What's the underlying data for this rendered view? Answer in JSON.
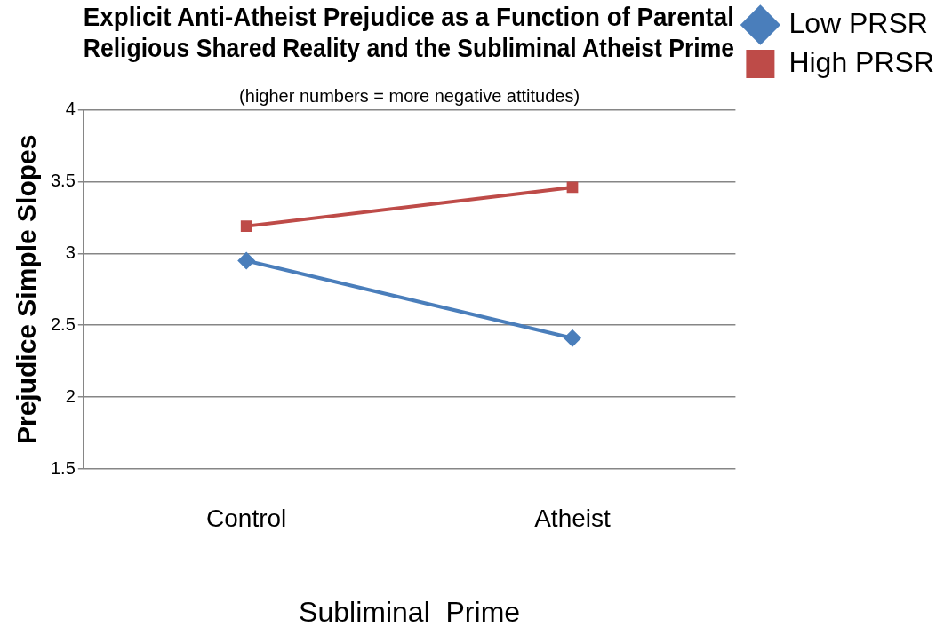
{
  "chart_data": {
    "type": "line",
    "title": "Explicit Anti-Atheist Prejudice as a Function of Parental Religious Shared Reality and the Subliminal Atheist Prime",
    "xlabel": "Subliminal  Prime",
    "ylabel": "Prejudice Simple Slopes",
    "annotations": [
      "(higher numbers = more negative attitudes)"
    ],
    "categories": [
      "Control",
      "Atheist"
    ],
    "series": [
      {
        "name": "Low PRSR",
        "color": "#4a7ebb",
        "marker": "diamond",
        "values": [
          2.95,
          2.41
        ]
      },
      {
        "name": "High PRSR",
        "color": "#be4b48",
        "marker": "square",
        "values": [
          3.19,
          3.46
        ]
      }
    ],
    "ylim": [
      1.5,
      4
    ],
    "yticks": [
      1.5,
      2,
      2.5,
      3,
      3.5,
      4
    ],
    "grid": "y",
    "legend": "right"
  }
}
